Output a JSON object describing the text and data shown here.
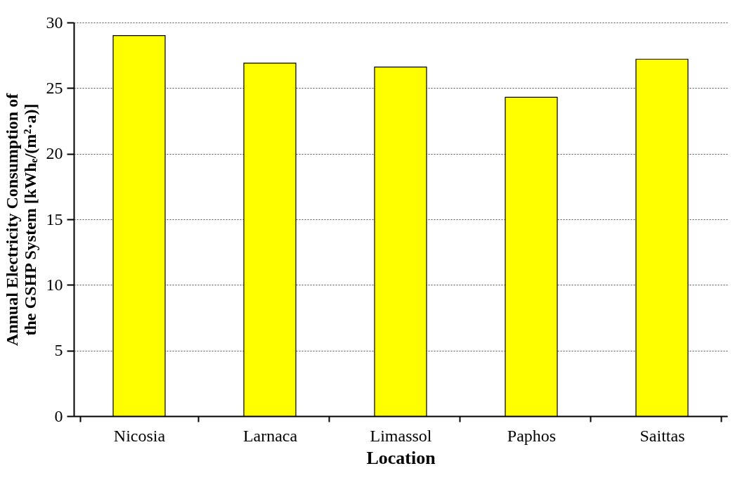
{
  "chart_data": {
    "type": "bar",
    "xlabel": "Location",
    "ylabel": [
      "Annual Electricity Consumption of",
      "the GSHP System [kWhₑ/(m²·a)]"
    ],
    "categories": [
      "Nicosia",
      "Larnaca",
      "Limassol",
      "Paphos",
      "Saittas"
    ],
    "values": [
      29.0,
      26.9,
      26.6,
      24.3,
      27.2
    ],
    "color": "#ffff00",
    "ylim": [
      0,
      30
    ],
    "yticks": [
      0,
      5,
      10,
      15,
      20,
      25,
      30
    ],
    "grid": "y"
  }
}
